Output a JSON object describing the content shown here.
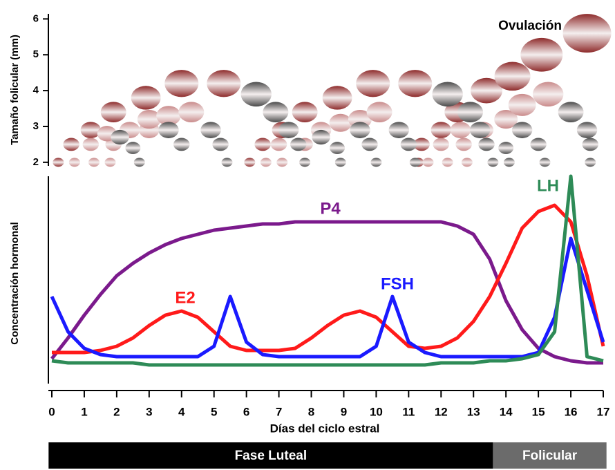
{
  "chart_data": [
    {
      "type": "scatter",
      "y_label": "Tamaño folicular (mm)",
      "annotation": "Ovulación",
      "xlim": [
        0,
        17
      ],
      "ylim": [
        1.9,
        6.2
      ],
      "yticks": [
        2,
        3,
        4,
        5,
        6
      ],
      "series": [
        {
          "color": "#8e2b2b",
          "x": [
            0.2,
            0.6,
            1.2,
            1.9,
            2.9,
            4.0,
            5.3,
            6.1,
            6.5,
            7.1,
            7.8,
            8.8,
            9.9,
            11.2,
            11.3,
            11.4,
            12.0,
            12.5,
            13.4,
            14.2,
            15.1,
            16.5
          ],
          "values": [
            2,
            2.5,
            2.9,
            3.4,
            3.8,
            4.2,
            4.2,
            2,
            2.5,
            2.9,
            3.4,
            3.8,
            4.2,
            4.2,
            2,
            2.5,
            2.9,
            3.4,
            4.0,
            4.4,
            5.0,
            5.6
          ]
        },
        {
          "color": "#c98a8a",
          "x": [
            0.7,
            1.3,
            1.8,
            1.2,
            1.9,
            1.7,
            2.4,
            3.0,
            3.0,
            3.6,
            4.3,
            6.6,
            7.1,
            7.8,
            7.0,
            7.8,
            8.3,
            8.9,
            9.5,
            10.1,
            11.6,
            12.2,
            12.8,
            12.0,
            12.7,
            12.6,
            13.3,
            14.0,
            14.5,
            15.3
          ],
          "values": [
            2,
            2,
            2,
            2.5,
            2.5,
            2.8,
            2.9,
            2.9,
            3.2,
            3.3,
            3.4,
            2,
            2,
            2,
            2.5,
            2.5,
            2.9,
            3.1,
            3.2,
            3.4,
            2,
            2,
            2,
            2.5,
            2.5,
            2.9,
            2.9,
            3.2,
            3.6,
            3.9
          ]
        },
        {
          "color": "#4a4a4a",
          "x": [
            2.7,
            2.1,
            2.5,
            3.6,
            4.0,
            4.9,
            5.4,
            5.2,
            6.3,
            6.9,
            7.3,
            7.6,
            7.8,
            8.3,
            8.8,
            8.9,
            9.5,
            9.8,
            10.0,
            10.7,
            11.0,
            11.2,
            12.2,
            12.9,
            13.2,
            13.4,
            13.6,
            14.0,
            14.1,
            14.5,
            15.0,
            15.2,
            16.0,
            16.5,
            16.6,
            16.6
          ],
          "values": [
            2,
            2.7,
            2.4,
            2.9,
            2.5,
            2.9,
            2,
            2.5,
            3.9,
            3.4,
            2.9,
            2.5,
            2,
            2.7,
            2.4,
            2,
            2.9,
            2.5,
            2,
            2.9,
            2.5,
            2,
            3.9,
            3.4,
            2.9,
            2.5,
            2,
            2.4,
            2,
            2.9,
            2.5,
            2,
            3.4,
            2.9,
            2.5,
            2
          ]
        }
      ]
    },
    {
      "type": "line",
      "y_label": "Concentración hormonal",
      "x_label": "Días del ciclo estral",
      "xlim": [
        0,
        17
      ],
      "xticks": [
        0,
        1,
        2,
        3,
        4,
        5,
        6,
        7,
        8,
        9,
        10,
        11,
        12,
        13,
        14,
        15,
        16,
        17
      ],
      "ylim": [
        0,
        100
      ],
      "x": [
        0,
        0.5,
        1,
        1.5,
        2,
        2.5,
        3,
        3.5,
        4,
        4.5,
        5,
        5.5,
        6,
        6.5,
        7,
        7.5,
        8,
        8.5,
        9,
        9.5,
        10,
        10.5,
        11,
        11.5,
        12,
        12.5,
        13,
        13.5,
        14,
        14.5,
        15,
        15.5,
        16,
        16.5,
        17
      ],
      "series": [
        {
          "name": "P4",
          "color": "#7b1a8c",
          "values": [
            12,
            22,
            33,
            43,
            52,
            58,
            63,
            67,
            70,
            72,
            74,
            75,
            76,
            77,
            77,
            78,
            78,
            78,
            78,
            78,
            78,
            78,
            78,
            78,
            78,
            76,
            72,
            60,
            40,
            26,
            17,
            13,
            11,
            10,
            10
          ]
        },
        {
          "name": "E2",
          "color": "#ff1a1a",
          "values": [
            15,
            15,
            15,
            16,
            18,
            22,
            28,
            33,
            35,
            32,
            25,
            18,
            16,
            16,
            16,
            17,
            22,
            28,
            33,
            35,
            32,
            25,
            18,
            17,
            18,
            22,
            30,
            42,
            58,
            75,
            83,
            86,
            78,
            52,
            18
          ]
        },
        {
          "name": "FSH",
          "color": "#1a1aff",
          "values": [
            42,
            25,
            17,
            14,
            13,
            13,
            13,
            13,
            13,
            13,
            18,
            42,
            20,
            14,
            13,
            13,
            13,
            13,
            13,
            13,
            18,
            42,
            20,
            15,
            13,
            13,
            13,
            13,
            13,
            13,
            15,
            32,
            70,
            45,
            20
          ]
        },
        {
          "name": "LH",
          "color": "#2e8b57",
          "values": [
            11,
            10,
            10,
            10,
            10,
            10,
            9,
            9,
            9,
            9,
            9,
            9,
            9,
            9,
            9,
            9,
            9,
            9,
            9,
            9,
            9,
            9,
            9,
            9,
            10,
            10,
            10,
            11,
            11,
            12,
            14,
            25,
            100,
            13,
            11
          ]
        }
      ]
    }
  ],
  "phases": [
    {
      "label": "Fase Luteal",
      "start": -0.1,
      "end": 13.6,
      "color": "#000000"
    },
    {
      "label": "Folicular",
      "start": 13.6,
      "end": 17.1,
      "color": "#6b6b6b"
    }
  ]
}
